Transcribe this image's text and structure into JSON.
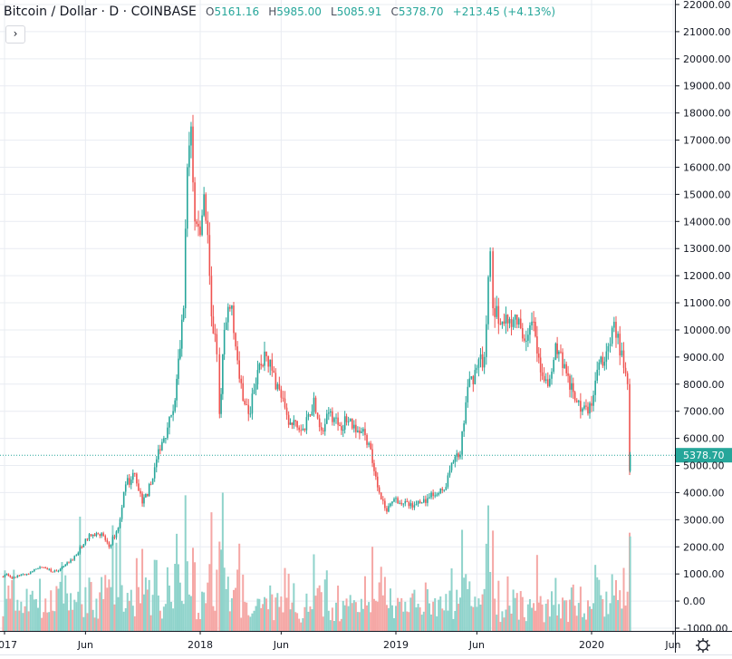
{
  "legend": {
    "symbol": "Bitcoin / Dollar · D · COINBASE",
    "open_label": "O",
    "open": "5161.16",
    "high_label": "H",
    "high": "5985.00",
    "low_label": "L",
    "low": "5085.91",
    "close_label": "C",
    "close": "5378.70",
    "change": "+213.45 (+4.13%)",
    "toggle_icon": "chevron-right-icon"
  },
  "colors": {
    "up": "#26a69a",
    "down": "#ef5350",
    "up_volume": "#8fd3cb",
    "down_volume": "#f5a7a5",
    "grid": "#e9ecf2",
    "price_line": "#26a69a"
  },
  "settings_icon": "gear-icon",
  "chart_data": {
    "type": "candlestick",
    "title": "Bitcoin / Dollar · D · COINBASE",
    "ylim": [
      -1000,
      22000
    ],
    "y_ticks": [
      "22000.00",
      "21000.00",
      "20000.00",
      "19000.00",
      "18000.00",
      "17000.00",
      "16000.00",
      "15000.00",
      "14000.00",
      "13000.00",
      "12000.00",
      "11000.00",
      "10000.00",
      "9000.00",
      "8000.00",
      "7000.00",
      "6000.00",
      "5000.00",
      "4000.00",
      "3000.00",
      "2000.00",
      "1000.00",
      "0.00",
      "-1000.00"
    ],
    "x_ticks": [
      {
        "label": "2017",
        "date": "2017-01-01"
      },
      {
        "label": "Jun",
        "date": "2017-06-01"
      },
      {
        "label": "2018",
        "date": "2018-01-01"
      },
      {
        "label": "Jun",
        "date": "2018-06-01"
      },
      {
        "label": "2019",
        "date": "2019-01-01"
      },
      {
        "label": "Jun",
        "date": "2019-06-01"
      },
      {
        "label": "2020",
        "date": "2020-01-01"
      },
      {
        "label": "Jun",
        "date": "2020-06-01"
      }
    ],
    "last_price": 5378.7,
    "last_price_label": "5378.70",
    "grid": true,
    "closes": [
      [
        "2016-12-26",
        900
      ],
      [
        "2017-01-05",
        1000
      ],
      [
        "2017-01-15",
        830
      ],
      [
        "2017-02-01",
        970
      ],
      [
        "2017-02-15",
        1000
      ],
      [
        "2017-03-01",
        1190
      ],
      [
        "2017-03-15",
        1240
      ],
      [
        "2017-04-01",
        1080
      ],
      [
        "2017-04-15",
        1180
      ],
      [
        "2017-05-01",
        1420
      ],
      [
        "2017-05-15",
        1700
      ],
      [
        "2017-06-01",
        2300
      ],
      [
        "2017-06-15",
        2450
      ],
      [
        "2017-07-01",
        2500
      ],
      [
        "2017-07-15",
        2000
      ],
      [
        "2017-08-01",
        2700
      ],
      [
        "2017-08-15",
        4300
      ],
      [
        "2017-09-01",
        4700
      ],
      [
        "2017-09-15",
        3600
      ],
      [
        "2017-10-01",
        4300
      ],
      [
        "2017-10-15",
        5600
      ],
      [
        "2017-11-01",
        6400
      ],
      [
        "2017-11-15",
        7400
      ],
      [
        "2017-12-01",
        10800
      ],
      [
        "2017-12-08",
        16000
      ],
      [
        "2017-12-15",
        17500
      ],
      [
        "2017-12-22",
        14000
      ],
      [
        "2018-01-01",
        13500
      ],
      [
        "2018-01-08",
        15000
      ],
      [
        "2018-01-15",
        13500
      ],
      [
        "2018-01-22",
        10500
      ],
      [
        "2018-02-01",
        9100
      ],
      [
        "2018-02-06",
        6900
      ],
      [
        "2018-02-15",
        10000
      ],
      [
        "2018-03-01",
        10900
      ],
      [
        "2018-03-15",
        8200
      ],
      [
        "2018-04-01",
        6900
      ],
      [
        "2018-04-15",
        8000
      ],
      [
        "2018-05-01",
        9200
      ],
      [
        "2018-05-15",
        8500
      ],
      [
        "2018-06-01",
        7500
      ],
      [
        "2018-06-15",
        6500
      ],
      [
        "2018-07-01",
        6400
      ],
      [
        "2018-07-15",
        6300
      ],
      [
        "2018-08-01",
        7500
      ],
      [
        "2018-08-15",
        6300
      ],
      [
        "2018-09-01",
        7000
      ],
      [
        "2018-09-15",
        6500
      ],
      [
        "2018-10-01",
        6600
      ],
      [
        "2018-10-15",
        6500
      ],
      [
        "2018-11-01",
        6350
      ],
      [
        "2018-11-15",
        5600
      ],
      [
        "2018-12-01",
        4000
      ],
      [
        "2018-12-15",
        3300
      ],
      [
        "2019-01-01",
        3800
      ],
      [
        "2019-01-15",
        3600
      ],
      [
        "2019-02-01",
        3450
      ],
      [
        "2019-02-15",
        3600
      ],
      [
        "2019-03-01",
        3800
      ],
      [
        "2019-03-15",
        3900
      ],
      [
        "2019-04-01",
        4100
      ],
      [
        "2019-04-15",
        5100
      ],
      [
        "2019-05-01",
        5400
      ],
      [
        "2019-05-15",
        7900
      ],
      [
        "2019-06-01",
        8600
      ],
      [
        "2019-06-15",
        9000
      ],
      [
        "2019-06-26",
        12900
      ],
      [
        "2019-07-01",
        10800
      ],
      [
        "2019-07-15",
        10200
      ],
      [
        "2019-08-01",
        10400
      ],
      [
        "2019-08-15",
        10200
      ],
      [
        "2019-09-01",
        9600
      ],
      [
        "2019-09-15",
        10300
      ],
      [
        "2019-10-01",
        8300
      ],
      [
        "2019-10-15",
        8200
      ],
      [
        "2019-10-26",
        9500
      ],
      [
        "2019-11-01",
        9200
      ],
      [
        "2019-11-15",
        8400
      ],
      [
        "2019-12-01",
        7400
      ],
      [
        "2019-12-15",
        7100
      ],
      [
        "2020-01-01",
        7200
      ],
      [
        "2020-01-15",
        8800
      ],
      [
        "2020-02-01",
        9400
      ],
      [
        "2020-02-12",
        10300
      ],
      [
        "2020-03-01",
        8600
      ],
      [
        "2020-03-08",
        8000
      ],
      [
        "2020-03-12",
        4800
      ],
      [
        "2020-03-13",
        5378.7
      ]
    ]
  }
}
